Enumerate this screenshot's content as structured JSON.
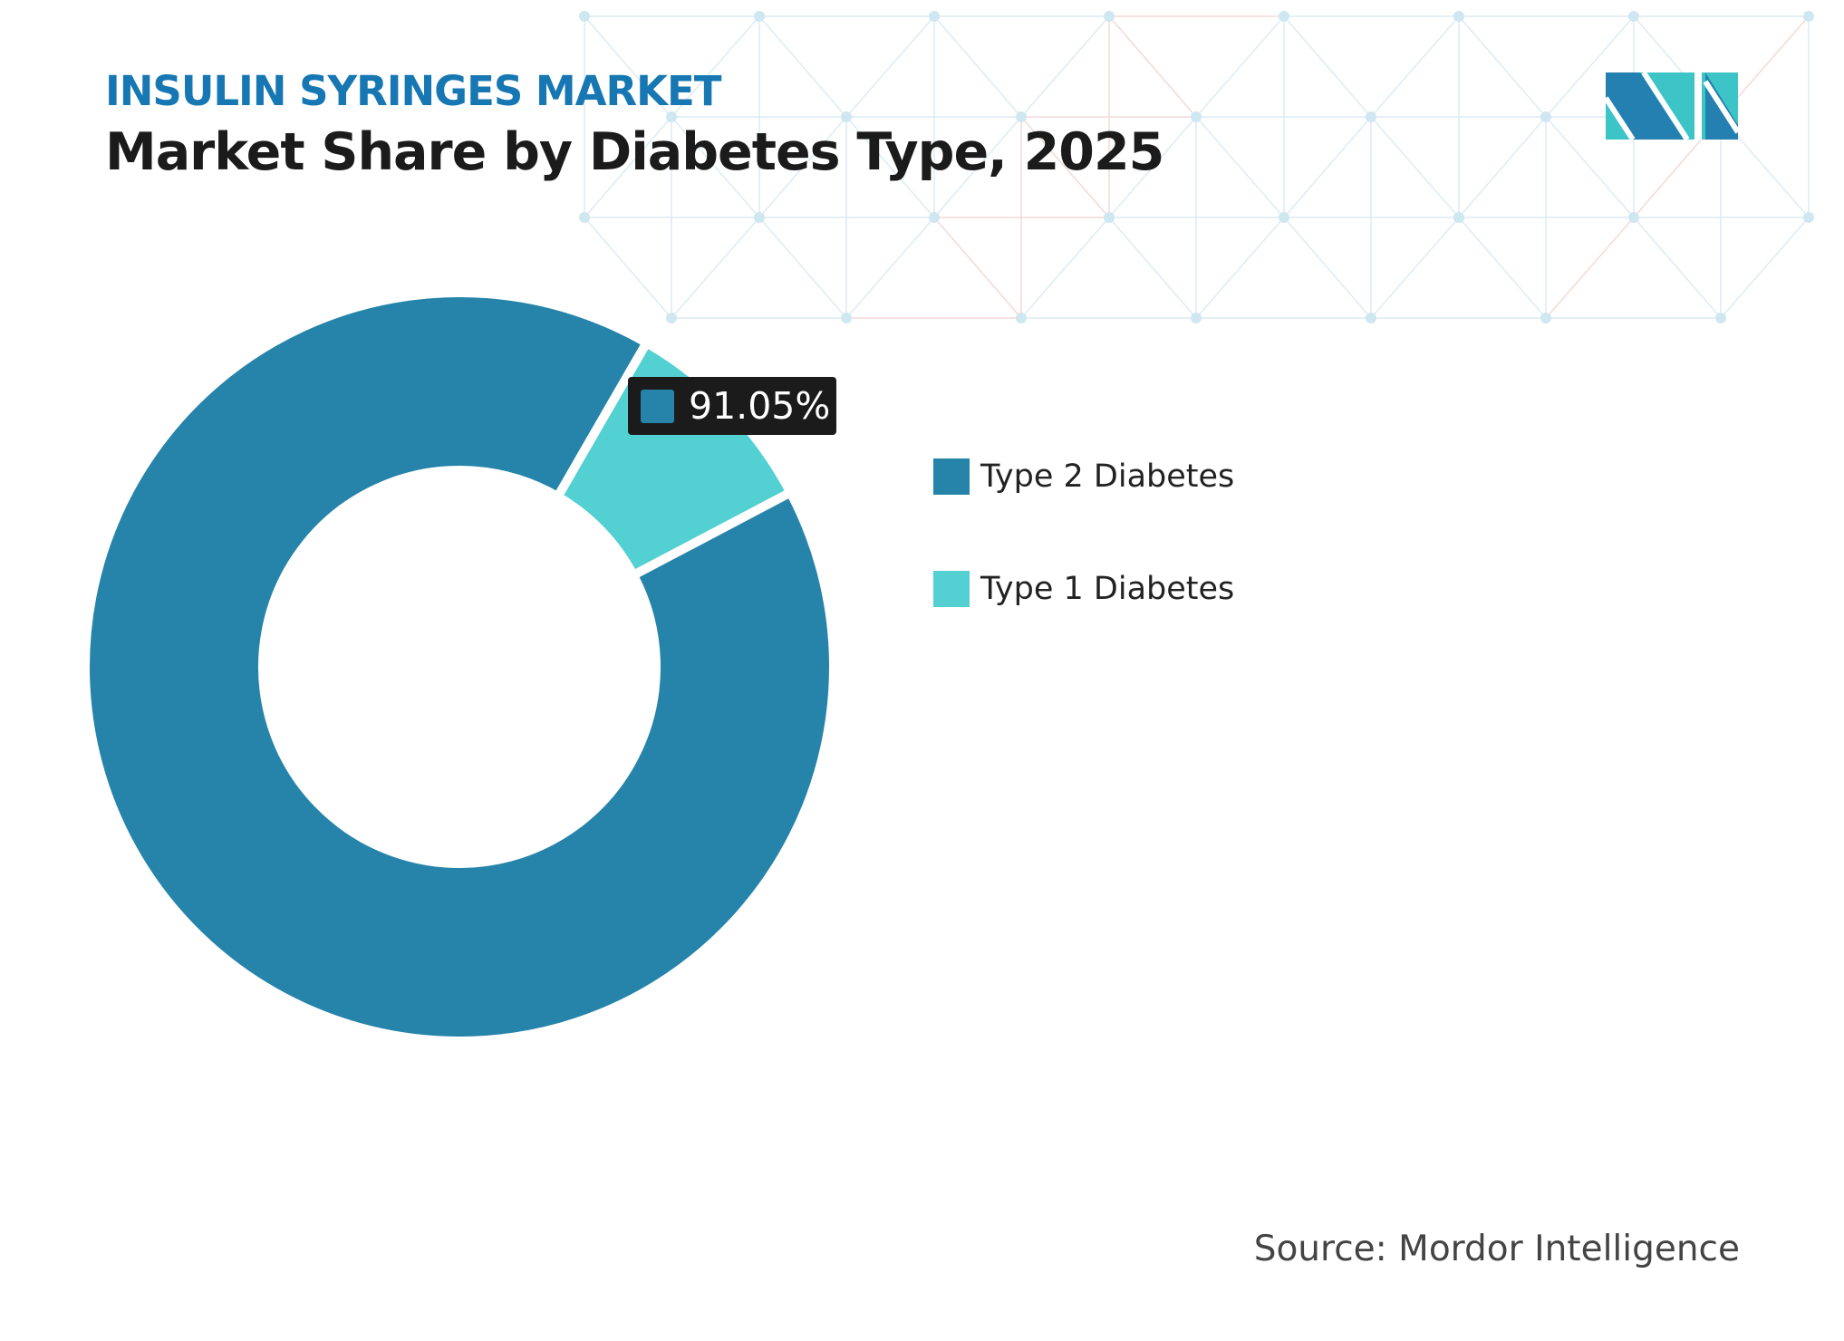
{
  "header": {
    "subtitle": "INSULIN SYRINGES MARKET",
    "title": "Market Share by Diabetes Type, 2025"
  },
  "tooltip": {
    "value": "91.05%",
    "color": "#2683aa"
  },
  "chart_data": {
    "type": "pie",
    "donut": true,
    "title": "Market Share by Diabetes Type, 2025",
    "categories": [
      "Type 2 Diabetes",
      "Type 1 Diabetes"
    ],
    "values": [
      91.05,
      8.95
    ],
    "colors": [
      "#2683aa",
      "#52d0d2"
    ],
    "legend": "right"
  },
  "source": "Source: Mordor Intelligence",
  "logo": {
    "text": "Mordor Intelligence",
    "colors": [
      "#2380b0",
      "#3cc4c6"
    ]
  }
}
